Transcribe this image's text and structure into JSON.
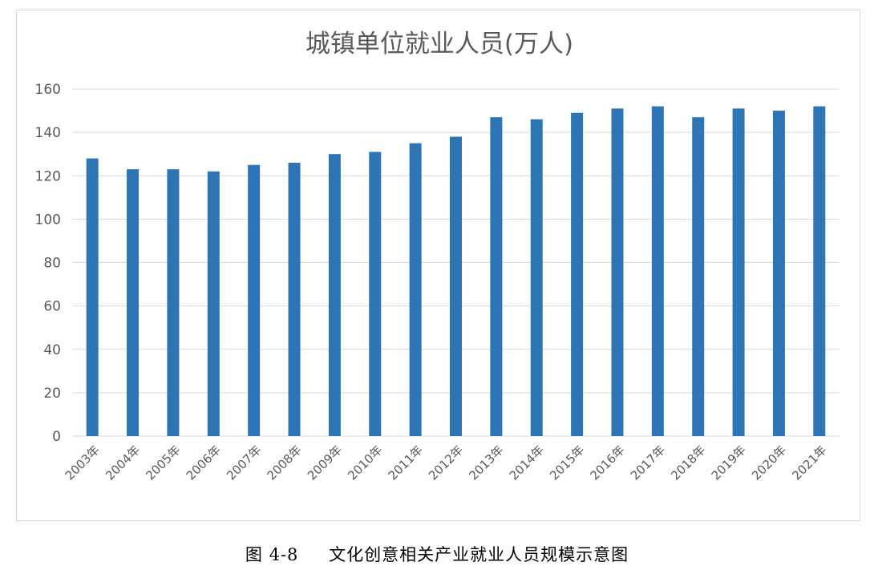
{
  "chart_data": {
    "type": "bar",
    "title": "城镇单位就业人员(万人)",
    "xlabel": "",
    "ylabel": "",
    "categories": [
      "2003年",
      "2004年",
      "2005年",
      "2006年",
      "2007年",
      "2008年",
      "2009年",
      "2010年",
      "2011年",
      "2012年",
      "2013年",
      "2014年",
      "2015年",
      "2016年",
      "2017年",
      "2018年",
      "2019年",
      "2020年",
      "2021年"
    ],
    "values": [
      128,
      123,
      123,
      122,
      125,
      126,
      130,
      131,
      135,
      138,
      147,
      146,
      149,
      151,
      152,
      147,
      151,
      150,
      152
    ],
    "ylim": [
      0,
      160
    ],
    "yticks": [
      0,
      20,
      40,
      60,
      80,
      100,
      120,
      140,
      160
    ],
    "grid": true,
    "legend": "none",
    "bar_color": "#2e75b6"
  },
  "caption": {
    "number": "图 4-8",
    "text": "文化创意相关产业就业人员规模示意图"
  }
}
